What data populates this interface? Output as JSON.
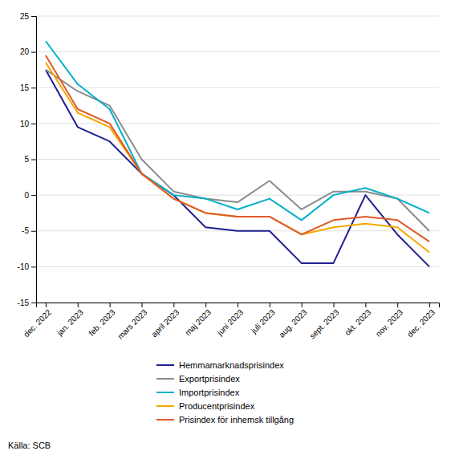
{
  "chart_data": {
    "type": "line",
    "categories": [
      "dec. 2022",
      "jan. 2023",
      "feb. 2023",
      "mars 2023",
      "april 2023",
      "maj 2023",
      "juni 2023",
      "juli 2023",
      "aug. 2023",
      "sept. 2023",
      "okt. 2023",
      "nov. 2023",
      "dec. 2023"
    ],
    "series": [
      {
        "name": "Hemmamarknadsprisindex",
        "color": "#1F1F8F",
        "values": [
          17.5,
          9.5,
          7.5,
          3.0,
          0.0,
          -4.5,
          -5.0,
          -5.0,
          -9.5,
          -9.5,
          0.0,
          -5.5,
          -10.0
        ]
      },
      {
        "name": "Exportprisindex",
        "color": "#8C8C8C",
        "values": [
          17.5,
          14.5,
          12.5,
          5.0,
          0.5,
          -0.5,
          -1.0,
          2.0,
          -2.0,
          0.5,
          0.5,
          -0.5,
          -5.0
        ]
      },
      {
        "name": "Importprisindex",
        "color": "#00B0C8",
        "values": [
          21.5,
          15.5,
          12.0,
          3.0,
          0.0,
          -0.5,
          -2.0,
          -0.5,
          -3.5,
          0.0,
          1.0,
          -0.5,
          -2.5
        ]
      },
      {
        "name": "Producentprisindex",
        "color": "#F5A800",
        "values": [
          18.5,
          11.5,
          9.5,
          3.0,
          -0.5,
          -2.5,
          -3.0,
          -3.0,
          -5.5,
          -4.5,
          -4.0,
          -4.5,
          -8.0
        ]
      },
      {
        "name": "Prisindex för inhemsk tillgång",
        "color": "#E05A28",
        "values": [
          19.5,
          12.0,
          10.0,
          3.0,
          -0.5,
          -2.5,
          -3.0,
          -3.0,
          -5.5,
          -3.5,
          -3.0,
          -3.5,
          -6.5
        ]
      }
    ],
    "ylim": [
      -15,
      25
    ],
    "yticks": [
      -15,
      -10,
      -5,
      0,
      5,
      10,
      15,
      20,
      25
    ],
    "grid": true,
    "legend": "bottom",
    "annotations": [
      "Källa: SCB"
    ]
  }
}
